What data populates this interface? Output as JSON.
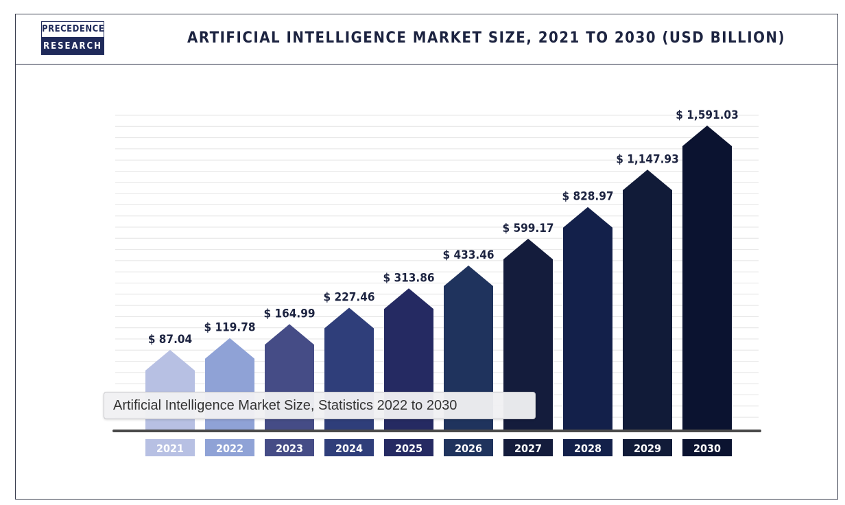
{
  "header": {
    "logo_top": "PRECEDENCE",
    "logo_bottom": "RESEARCH",
    "title": "ARTIFICIAL INTELLIGENCE MARKET SIZE, 2021 TO 2030 (USD BILLION)"
  },
  "tooltip": {
    "text": "Artificial Intelligence Market Size, Statistics 2022 to 2030"
  },
  "colors": {
    "bars": [
      "#b7c0e3",
      "#8fa2d6",
      "#454c86",
      "#2f3e7a",
      "#252a62",
      "#1f335d",
      "#141c3c",
      "#13204a",
      "#111b38",
      "#0b1330"
    ],
    "gridline": "#e4e4e4",
    "baseline": "#4a4a4a",
    "label_text": "#1c2340"
  },
  "chart_data": {
    "type": "bar",
    "title": "ARTIFICIAL INTELLIGENCE MARKET SIZE, 2021 TO 2030 (USD BILLION)",
    "categories": [
      "2021",
      "2022",
      "2023",
      "2024",
      "2025",
      "2026",
      "2027",
      "2028",
      "2029",
      "2030"
    ],
    "values": [
      87.04,
      119.78,
      164.99,
      227.46,
      313.86,
      433.46,
      599.17,
      828.97,
      1147.93,
      1591.03
    ],
    "value_labels": [
      "$ 87.04",
      "$ 119.78",
      "$ 164.99",
      "$ 227.46",
      "$ 313.86",
      "$ 433.46",
      "$ 599.17",
      "$ 828.97",
      "$ 1,147.93",
      "$ 1,591.03"
    ],
    "unit": "USD Billion",
    "xlabel": "",
    "ylabel": "",
    "grid": true
  }
}
